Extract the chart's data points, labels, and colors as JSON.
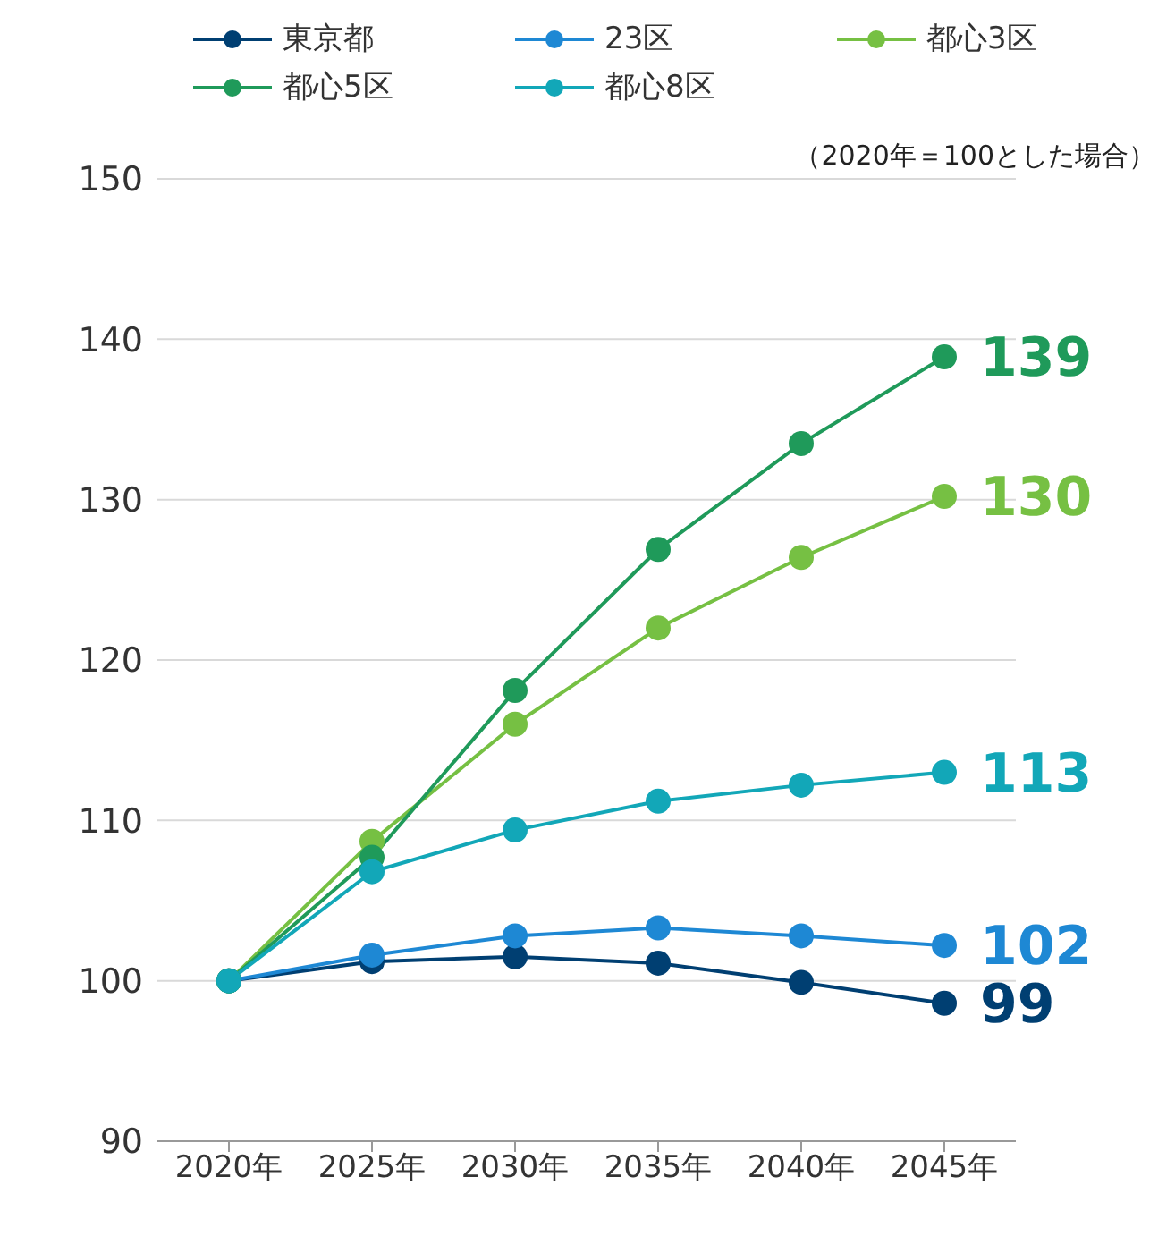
{
  "chart_data": {
    "type": "line",
    "categories": [
      "2020年",
      "2025年",
      "2030年",
      "2035年",
      "2040年",
      "2045年"
    ],
    "series": [
      {
        "name": "東京都",
        "color": "#003f72",
        "values": [
          100,
          101.2,
          101.5,
          101.1,
          99.9,
          98.6
        ],
        "value_labels": [
          null,
          null,
          null,
          null,
          null,
          "99"
        ]
      },
      {
        "name": "23区",
        "color": "#1e88d4",
        "values": [
          100,
          101.6,
          102.8,
          103.3,
          102.8,
          102.2
        ],
        "value_labels": [
          null,
          null,
          null,
          null,
          null,
          "102"
        ]
      },
      {
        "name": "都心3区",
        "color": "#76c043",
        "values": [
          100,
          108.7,
          116.0,
          122.0,
          126.4,
          130.2
        ],
        "value_labels": [
          null,
          null,
          null,
          null,
          null,
          "130"
        ]
      },
      {
        "name": "都心5区",
        "color": "#1f9a5a",
        "values": [
          100,
          107.7,
          118.1,
          126.9,
          133.5,
          138.9
        ],
        "value_labels": [
          null,
          null,
          null,
          null,
          null,
          "139"
        ]
      },
      {
        "name": "都心8区",
        "color": "#12a7b8",
        "values": [
          100,
          106.8,
          109.4,
          111.2,
          112.2,
          113.0
        ],
        "value_labels": [
          null,
          null,
          null,
          null,
          null,
          "113"
        ]
      }
    ],
    "ylim": [
      90,
      150
    ],
    "yticks": [
      90,
      100,
      110,
      120,
      130,
      140,
      150
    ],
    "grid": "y",
    "legend": "top left",
    "marker": "circle",
    "annotations": [
      "（2020年＝100とした場合）"
    ]
  }
}
